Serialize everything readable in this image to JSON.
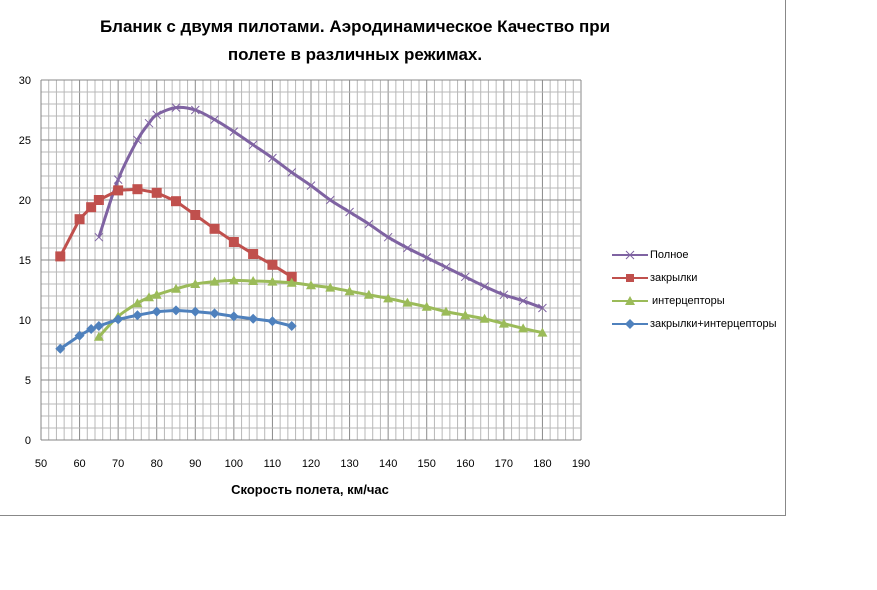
{
  "chart_data": {
    "type": "line",
    "title_line1": "Бланик с двумя пилотами. Аэродинамическое  Качество  при",
    "title_line2": "полете в различных режимах.",
    "xlabel": "Скорость полета, км/час",
    "ylabel": "",
    "xlim": [
      50,
      190
    ],
    "ylim": [
      0,
      30
    ],
    "xticks": [
      50,
      60,
      70,
      80,
      90,
      100,
      110,
      120,
      130,
      140,
      150,
      160,
      170,
      180,
      190
    ],
    "yticks": [
      0,
      5,
      10,
      15,
      20,
      25,
      30
    ],
    "grid": true,
    "legend_position": "right",
    "series": [
      {
        "name": "Полное",
        "color": "#7f63a2",
        "marker": "x",
        "smooth": true,
        "x": [
          65,
          70,
          75,
          78,
          80,
          85,
          90,
          95,
          100,
          105,
          110,
          115,
          120,
          125,
          130,
          135,
          140,
          145,
          150,
          155,
          160,
          165,
          170,
          175,
          180
        ],
        "y": [
          16.9,
          21.7,
          25.0,
          26.4,
          27.1,
          27.7,
          27.5,
          26.7,
          25.7,
          24.6,
          23.5,
          22.3,
          21.2,
          20.0,
          19.0,
          18.0,
          16.9,
          16.0,
          15.2,
          14.4,
          13.6,
          12.8,
          12.1,
          11.6,
          11.0
        ]
      },
      {
        "name": "закрылки",
        "color": "#c0504d",
        "marker": "square",
        "smooth": false,
        "x": [
          55,
          60,
          63,
          65,
          70,
          75,
          80,
          85,
          90,
          95,
          100,
          105,
          110,
          115
        ],
        "y": [
          15.3,
          18.4,
          19.4,
          20.0,
          20.8,
          20.9,
          20.6,
          19.9,
          18.75,
          17.6,
          16.5,
          15.5,
          14.6,
          13.6
        ]
      },
      {
        "name": "интерцепторы",
        "color": "#9bbb59",
        "marker": "triangle",
        "smooth": true,
        "x": [
          65,
          70,
          75,
          78,
          80,
          85,
          90,
          95,
          100,
          105,
          110,
          115,
          120,
          125,
          130,
          135,
          140,
          145,
          150,
          155,
          160,
          165,
          170,
          175,
          180
        ],
        "y": [
          8.6,
          10.3,
          11.4,
          11.9,
          12.1,
          12.6,
          13.0,
          13.2,
          13.3,
          13.25,
          13.2,
          13.1,
          12.9,
          12.7,
          12.4,
          12.1,
          11.8,
          11.45,
          11.1,
          10.7,
          10.4,
          10.1,
          9.7,
          9.3,
          8.95
        ]
      },
      {
        "name": "закрылки+интерцепторы",
        "color": "#4f81bd",
        "marker": "diamond",
        "smooth": false,
        "x": [
          55,
          60,
          63,
          65,
          70,
          75,
          80,
          85,
          90,
          95,
          100,
          105,
          110,
          115
        ],
        "y": [
          7.6,
          8.7,
          9.25,
          9.5,
          10.05,
          10.4,
          10.7,
          10.8,
          10.7,
          10.55,
          10.3,
          10.1,
          9.9,
          9.5
        ]
      }
    ]
  }
}
